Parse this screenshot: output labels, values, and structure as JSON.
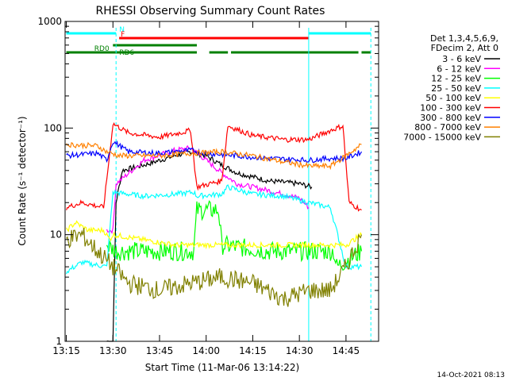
{
  "chart_data": {
    "type": "line",
    "title": "RHESSI Observing Summary Count Rates",
    "xlabel": "Start Time (11-Mar-06 13:14:22)",
    "ylabel": "Count Rate (s⁻¹ detector⁻¹)",
    "yscale": "log",
    "ylim": [
      1,
      1000
    ],
    "xlim_minutes": [
      13.15,
      14.92
    ],
    "x_ticks": [
      "13:15",
      "13:30",
      "13:45",
      "14:00",
      "14:15",
      "14:30",
      "14:45"
    ],
    "y_ticks": [
      "1",
      "10",
      "100",
      "1000"
    ],
    "timestamp": "14-Oct-2021 08:13",
    "legend": {
      "header": [
        "Det 1,3,4,5,6,9,",
        "FDecim 2, Att 0"
      ],
      "placement": "right"
    },
    "flags": [
      {
        "label": "N",
        "color": "#00ffff",
        "segments": [
          [
            "13:15",
            "13:31"
          ],
          [
            "14:33",
            "14:53"
          ]
        ]
      },
      {
        "label": "F",
        "color": "#ff0000",
        "segments": [
          [
            "13:32",
            "14:33"
          ]
        ]
      },
      {
        "label": "RD0",
        "color": "#008000",
        "segments": [
          [
            "13:15",
            "13:57"
          ],
          [
            "14:01",
            "14:07"
          ],
          [
            "14:08",
            "14:49"
          ],
          [
            "14:50",
            "14:53"
          ]
        ]
      },
      {
        "label": "RD6",
        "color": "#008000",
        "segments": [
          [
            "13:30",
            "13:57"
          ]
        ]
      }
    ],
    "series": [
      {
        "name": "3 - 6 keV",
        "color": "#000000",
        "points": [
          [
            "13:28",
            1
          ],
          [
            "13:30",
            1
          ],
          [
            "13:31",
            20
          ],
          [
            "13:33",
            40
          ],
          [
            "13:40",
            45
          ],
          [
            "13:50",
            55
          ],
          [
            "13:55",
            60
          ],
          [
            "14:00",
            55
          ],
          [
            "14:05",
            45
          ],
          [
            "14:10",
            38
          ],
          [
            "14:20",
            32
          ],
          [
            "14:30",
            30
          ],
          [
            "14:34",
            28
          ]
        ]
      },
      {
        "name": "6 - 12 keV",
        "color": "#ff00ff",
        "points": [
          [
            "13:28",
            11
          ],
          [
            "13:30",
            11
          ],
          [
            "13:31",
            30
          ],
          [
            "13:40",
            50
          ],
          [
            "13:50",
            62
          ],
          [
            "13:55",
            65
          ],
          [
            "14:00",
            50
          ],
          [
            "14:05",
            38
          ],
          [
            "14:10",
            30
          ],
          [
            "14:20",
            26
          ],
          [
            "14:30",
            22
          ],
          [
            "14:33",
            18
          ]
        ]
      },
      {
        "name": "12 - 25 keV",
        "color": "#00ff00",
        "points": [
          [
            "13:28",
            8
          ],
          [
            "13:31",
            7
          ],
          [
            "13:40",
            7
          ],
          [
            "13:50",
            7
          ],
          [
            "13:56",
            7
          ],
          [
            "13:57",
            17
          ],
          [
            "14:04",
            17
          ],
          [
            "14:05",
            8
          ],
          [
            "14:20",
            7
          ],
          [
            "14:33",
            7
          ],
          [
            "14:41",
            7
          ],
          [
            "14:42",
            5
          ],
          [
            "14:50",
            7
          ]
        ]
      },
      {
        "name": "25 - 50 keV",
        "color": "#00ffff",
        "points": [
          [
            "13:15",
            4.5
          ],
          [
            "13:20",
            5.5
          ],
          [
            "13:28",
            5
          ],
          [
            "13:30",
            25
          ],
          [
            "13:40",
            23
          ],
          [
            "13:50",
            24
          ],
          [
            "13:56",
            25
          ],
          [
            "13:57",
            23
          ],
          [
            "14:05",
            24
          ],
          [
            "14:07",
            28
          ],
          [
            "14:15",
            24
          ],
          [
            "14:25",
            23
          ],
          [
            "14:33",
            20
          ],
          [
            "14:40",
            18
          ],
          [
            "14:45",
            5
          ],
          [
            "14:50",
            5
          ]
        ]
      },
      {
        "name": "50 - 100 keV",
        "color": "#ffff00",
        "points": [
          [
            "13:15",
            11
          ],
          [
            "13:18",
            13
          ],
          [
            "13:22",
            11
          ],
          [
            "13:27",
            11
          ],
          [
            "13:29",
            9
          ],
          [
            "13:30",
            10
          ],
          [
            "13:50",
            8
          ],
          [
            "14:45",
            8
          ],
          [
            "14:50",
            10
          ]
        ]
      },
      {
        "name": "100 - 300 keV",
        "color": "#ff0000",
        "points": [
          [
            "13:15",
            18
          ],
          [
            "13:20",
            20
          ],
          [
            "13:27",
            18
          ],
          [
            "13:29",
            60
          ],
          [
            "13:30",
            110
          ],
          [
            "13:35",
            90
          ],
          [
            "13:45",
            82
          ],
          [
            "13:55",
            95
          ],
          [
            "13:57",
            28
          ],
          [
            "14:05",
            32
          ],
          [
            "14:07",
            105
          ],
          [
            "14:15",
            85
          ],
          [
            "14:25",
            78
          ],
          [
            "14:33",
            78
          ],
          [
            "14:40",
            95
          ],
          [
            "14:44",
            105
          ],
          [
            "14:46",
            20
          ],
          [
            "14:50",
            17
          ]
        ]
      },
      {
        "name": "300 - 800 keV",
        "color": "#0000ff",
        "points": [
          [
            "13:15",
            55
          ],
          [
            "13:25",
            58
          ],
          [
            "13:28",
            50
          ],
          [
            "13:30",
            75
          ],
          [
            "13:35",
            60
          ],
          [
            "13:45",
            58
          ],
          [
            "13:55",
            62
          ],
          [
            "14:00",
            58
          ],
          [
            "14:10",
            55
          ],
          [
            "14:20",
            52
          ],
          [
            "14:33",
            50
          ],
          [
            "14:40",
            52
          ],
          [
            "14:45",
            52
          ],
          [
            "14:50",
            60
          ]
        ]
      },
      {
        "name": "800 - 7000 keV",
        "color": "#ff8000",
        "points": [
          [
            "13:15",
            70
          ],
          [
            "13:25",
            68
          ],
          [
            "13:28",
            60
          ],
          [
            "13:32",
            55
          ],
          [
            "13:45",
            55
          ],
          [
            "13:55",
            58
          ],
          [
            "14:05",
            60
          ],
          [
            "14:15",
            55
          ],
          [
            "14:25",
            48
          ],
          [
            "14:33",
            44
          ],
          [
            "14:40",
            44
          ],
          [
            "14:45",
            55
          ],
          [
            "14:50",
            70
          ]
        ]
      },
      {
        "name": "7000 - 15000 keV",
        "color": "#808000",
        "points": [
          [
            "13:15",
            9
          ],
          [
            "13:20",
            10
          ],
          [
            "13:25",
            7
          ],
          [
            "13:30",
            5
          ],
          [
            "13:35",
            3.5
          ],
          [
            "13:45",
            3
          ],
          [
            "13:55",
            3.5
          ],
          [
            "14:05",
            4
          ],
          [
            "14:15",
            3.5
          ],
          [
            "14:25",
            2.5
          ],
          [
            "14:33",
            3
          ],
          [
            "14:40",
            3
          ],
          [
            "14:45",
            5
          ],
          [
            "14:50",
            10
          ]
        ]
      }
    ]
  }
}
